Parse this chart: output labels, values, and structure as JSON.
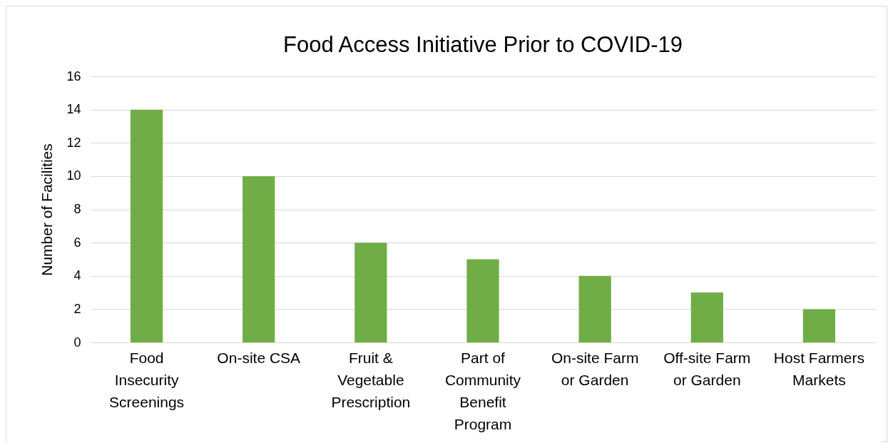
{
  "chart_data": {
    "type": "bar",
    "title": "Food Access Initiative Prior to COVID-19",
    "ylabel": "Number of Facilities",
    "categories": [
      "Food Insecurity Screenings",
      "On-site CSA",
      "Fruit & Vegetable Prescription",
      "Part of Community Benefit Program",
      "On-site Farm or Garden",
      "Off-site Farm or Garden",
      "Host Farmers Markets"
    ],
    "values": [
      14,
      10,
      6,
      5,
      4,
      3,
      2
    ],
    "color": "#70ad47",
    "ylim": [
      0,
      16
    ],
    "yticks": [
      0,
      2,
      4,
      6,
      8,
      10,
      12,
      14,
      16
    ],
    "grid": "y"
  }
}
